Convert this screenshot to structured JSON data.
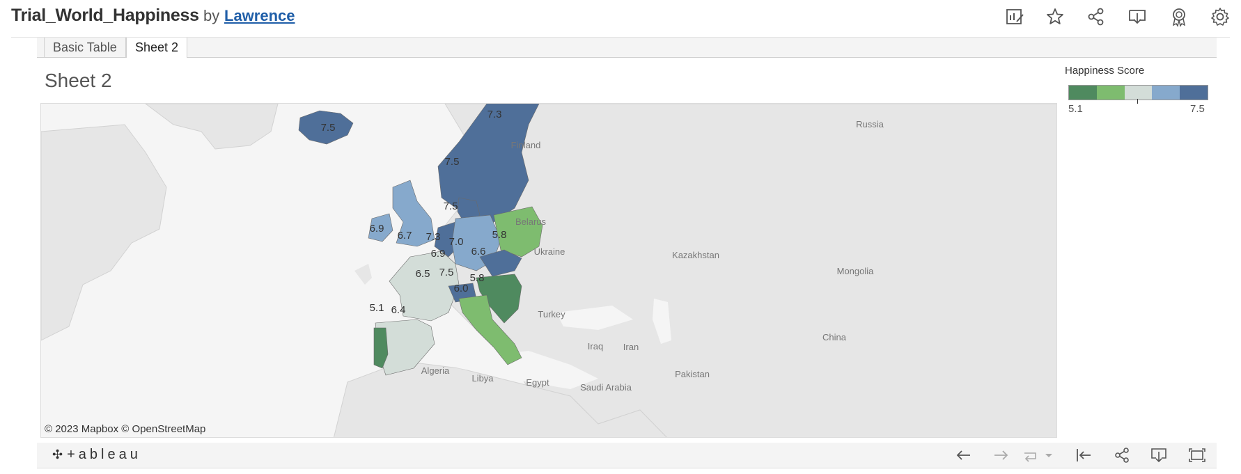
{
  "header": {
    "workbook_title": "Trial_World_Happiness",
    "by_text": "by",
    "author": "Lawrence",
    "icons": [
      "view-data-icon",
      "star-icon",
      "share-icon",
      "download-icon",
      "badge-icon",
      "settings-icon"
    ]
  },
  "tabs": [
    {
      "label": "Basic Table",
      "active": false
    },
    {
      "label": "Sheet 2",
      "active": true
    }
  ],
  "sheet": {
    "title": "Sheet 2"
  },
  "legend": {
    "title": "Happiness Score",
    "min_label": "5.1",
    "max_label": "7.5",
    "colors": [
      "#4f8a5f",
      "#7ebc6f",
      "#d3ddd8",
      "#86a9cc",
      "#4f6f99"
    ]
  },
  "map": {
    "attribution": "© 2023 Mapbox  © OpenStreetMap",
    "place_labels": [
      "Finland",
      "Russia",
      "Belarus",
      "Ukraine",
      "Kazakhstan",
      "Mongolia",
      "Turkey",
      "Iraq",
      "Iran",
      "Algeria",
      "Libya",
      "Egypt",
      "Saudi Arabia",
      "Pakistan",
      "China"
    ],
    "country_values": {
      "iceland": "7.5",
      "norway": "7.5",
      "sweden": "7.3",
      "denmark": "7.5",
      "ireland": "6.9",
      "uk": "6.7",
      "netherlands": "7.3",
      "belgium": "6.9",
      "germany": "7.0",
      "poland": "5.8",
      "czechia": "6.6",
      "france": "6.5",
      "switzerland": "7.5",
      "austria_slovenia": "5.8",
      "italy": "6.0",
      "spain": "6.4",
      "portugal": "5.1"
    }
  },
  "footer": {
    "logo_text": "+ableau",
    "icons": [
      "undo-icon",
      "redo-icon",
      "revert-icon",
      "dropdown-icon",
      "reset-icon",
      "share-icon",
      "download-icon",
      "fullscreen-icon"
    ]
  }
}
